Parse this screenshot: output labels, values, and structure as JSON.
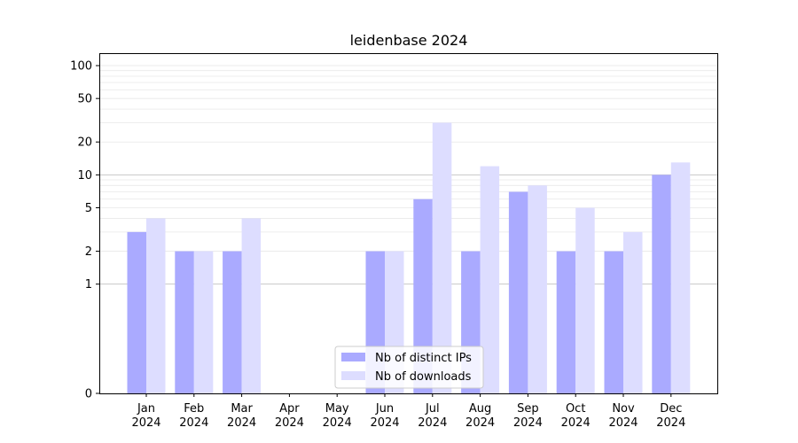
{
  "chart_data": {
    "type": "bar",
    "title": "leidenbase 2024",
    "xlabel": "",
    "ylabel": "",
    "y_scale": "symlog",
    "ylim": [
      0,
      130
    ],
    "y_ticks": [
      0,
      1,
      2,
      5,
      10,
      20,
      50,
      100
    ],
    "categories": [
      [
        "Jan",
        "2024"
      ],
      [
        "Feb",
        "2024"
      ],
      [
        "Mar",
        "2024"
      ],
      [
        "Apr",
        "2024"
      ],
      [
        "May",
        "2024"
      ],
      [
        "Jun",
        "2024"
      ],
      [
        "Jul",
        "2024"
      ],
      [
        "Aug",
        "2024"
      ],
      [
        "Sep",
        "2024"
      ],
      [
        "Oct",
        "2024"
      ],
      [
        "Nov",
        "2024"
      ],
      [
        "Dec",
        "2024"
      ]
    ],
    "series": [
      {
        "name": "Nb of distinct IPs",
        "color": "#aaaaff",
        "values": [
          3,
          2,
          2,
          0,
          0,
          2,
          6,
          2,
          7,
          2,
          2,
          10
        ]
      },
      {
        "name": "Nb of downloads",
        "color": "#ddddff",
        "values": [
          4,
          2,
          4,
          0,
          0,
          2,
          30,
          12,
          8,
          5,
          3,
          13
        ]
      }
    ],
    "legend_position": "bottom-center",
    "grid": true
  }
}
